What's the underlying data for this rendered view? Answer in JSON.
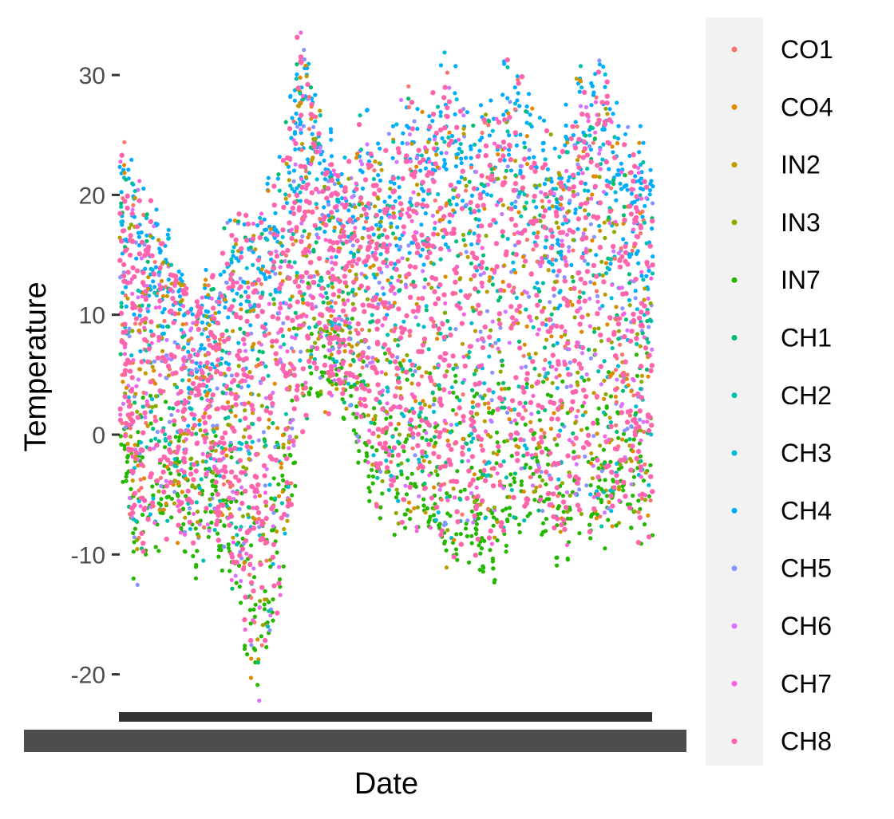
{
  "chart_data": {
    "type": "scatter",
    "xlabel": "Date",
    "ylabel": "Temperature",
    "ylim": [
      -22,
      33.5
    ],
    "y_ticks": [
      "-20",
      "-10",
      "0",
      "10",
      "20",
      "30"
    ],
    "y_tick_values": [
      -20,
      -10,
      0,
      10,
      20,
      30
    ],
    "x_tick_labels_note": "overplotted date tick labels render as an illegible dark band",
    "grid": false,
    "legend_position": "right",
    "series": [
      {
        "name": "CO1",
        "color": "#F8766D"
      },
      {
        "name": "CO4",
        "color": "#E18A00"
      },
      {
        "name": "IN2",
        "color": "#BE9C00"
      },
      {
        "name": "IN3",
        "color": "#8CAB00"
      },
      {
        "name": "IN7",
        "color": "#24B700"
      },
      {
        "name": "CH1",
        "color": "#00BE70"
      },
      {
        "name": "CH2",
        "color": "#00C1AB"
      },
      {
        "name": "CH3",
        "color": "#00BBDA"
      },
      {
        "name": "CH4",
        "color": "#00ACFC"
      },
      {
        "name": "CH5",
        "color": "#8B93FF"
      },
      {
        "name": "CH6",
        "color": "#D575FE"
      },
      {
        "name": "CH7",
        "color": "#F962DD"
      },
      {
        "name": "CH8",
        "color": "#FF65AC"
      }
    ],
    "envelope": {
      "x_index": [
        0,
        3,
        6,
        10,
        14,
        18,
        22,
        26,
        30,
        34,
        38,
        42,
        46,
        50,
        54,
        58,
        62,
        66,
        70,
        74,
        78,
        82,
        86,
        90,
        94,
        98,
        100
      ],
      "upper": [
        24,
        20,
        18,
        14,
        10,
        12,
        19,
        16,
        22,
        32,
        26,
        20,
        25,
        22,
        27,
        26,
        30,
        24,
        28,
        29,
        26,
        22,
        28,
        31,
        25,
        23,
        21
      ],
      "lower": [
        0,
        -10,
        -8,
        -5,
        -9,
        -7,
        -13,
        -20,
        -12,
        3,
        5,
        4,
        -2,
        -5,
        -6,
        -7,
        -9,
        -8,
        -10,
        -6,
        -5,
        -8,
        -6,
        -7,
        -5,
        -7,
        -6
      ]
    }
  }
}
